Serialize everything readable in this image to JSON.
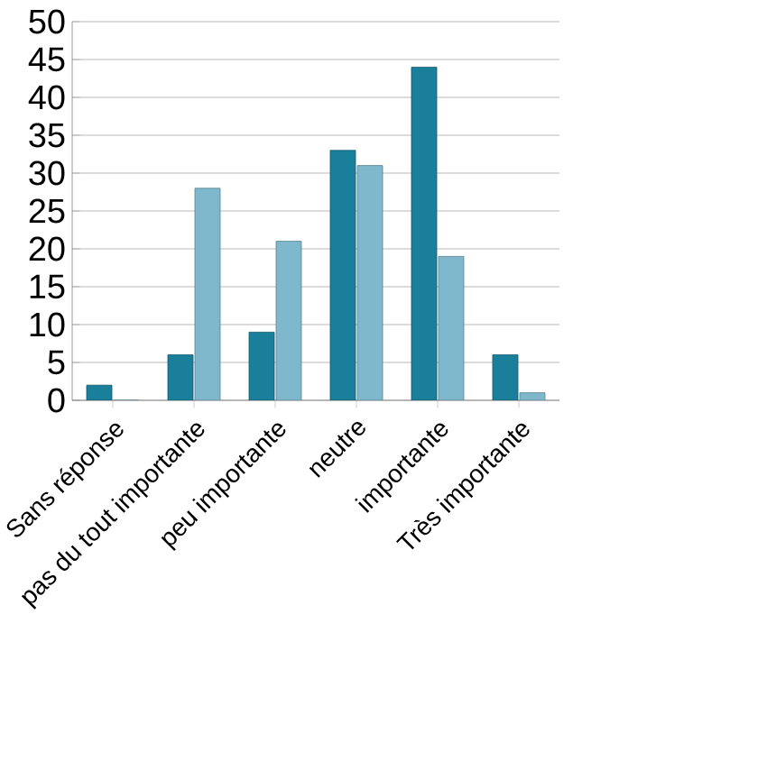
{
  "chart_data": {
    "type": "bar",
    "categories": [
      "Sans réponse",
      "pas du tout importante",
      "peu importante",
      "neutre",
      "importante",
      "Très importante"
    ],
    "series": [
      {
        "color": "#1a7f9a",
        "values": [
          2,
          6,
          9,
          33,
          44,
          6
        ]
      },
      {
        "color": "#7fb8cc",
        "values": [
          0,
          28,
          21,
          31,
          19,
          1
        ]
      }
    ],
    "ylim": [
      0,
      50
    ],
    "yticks": [
      0,
      5,
      10,
      15,
      20,
      25,
      30,
      35,
      40,
      45,
      50
    ],
    "grid": "y"
  }
}
